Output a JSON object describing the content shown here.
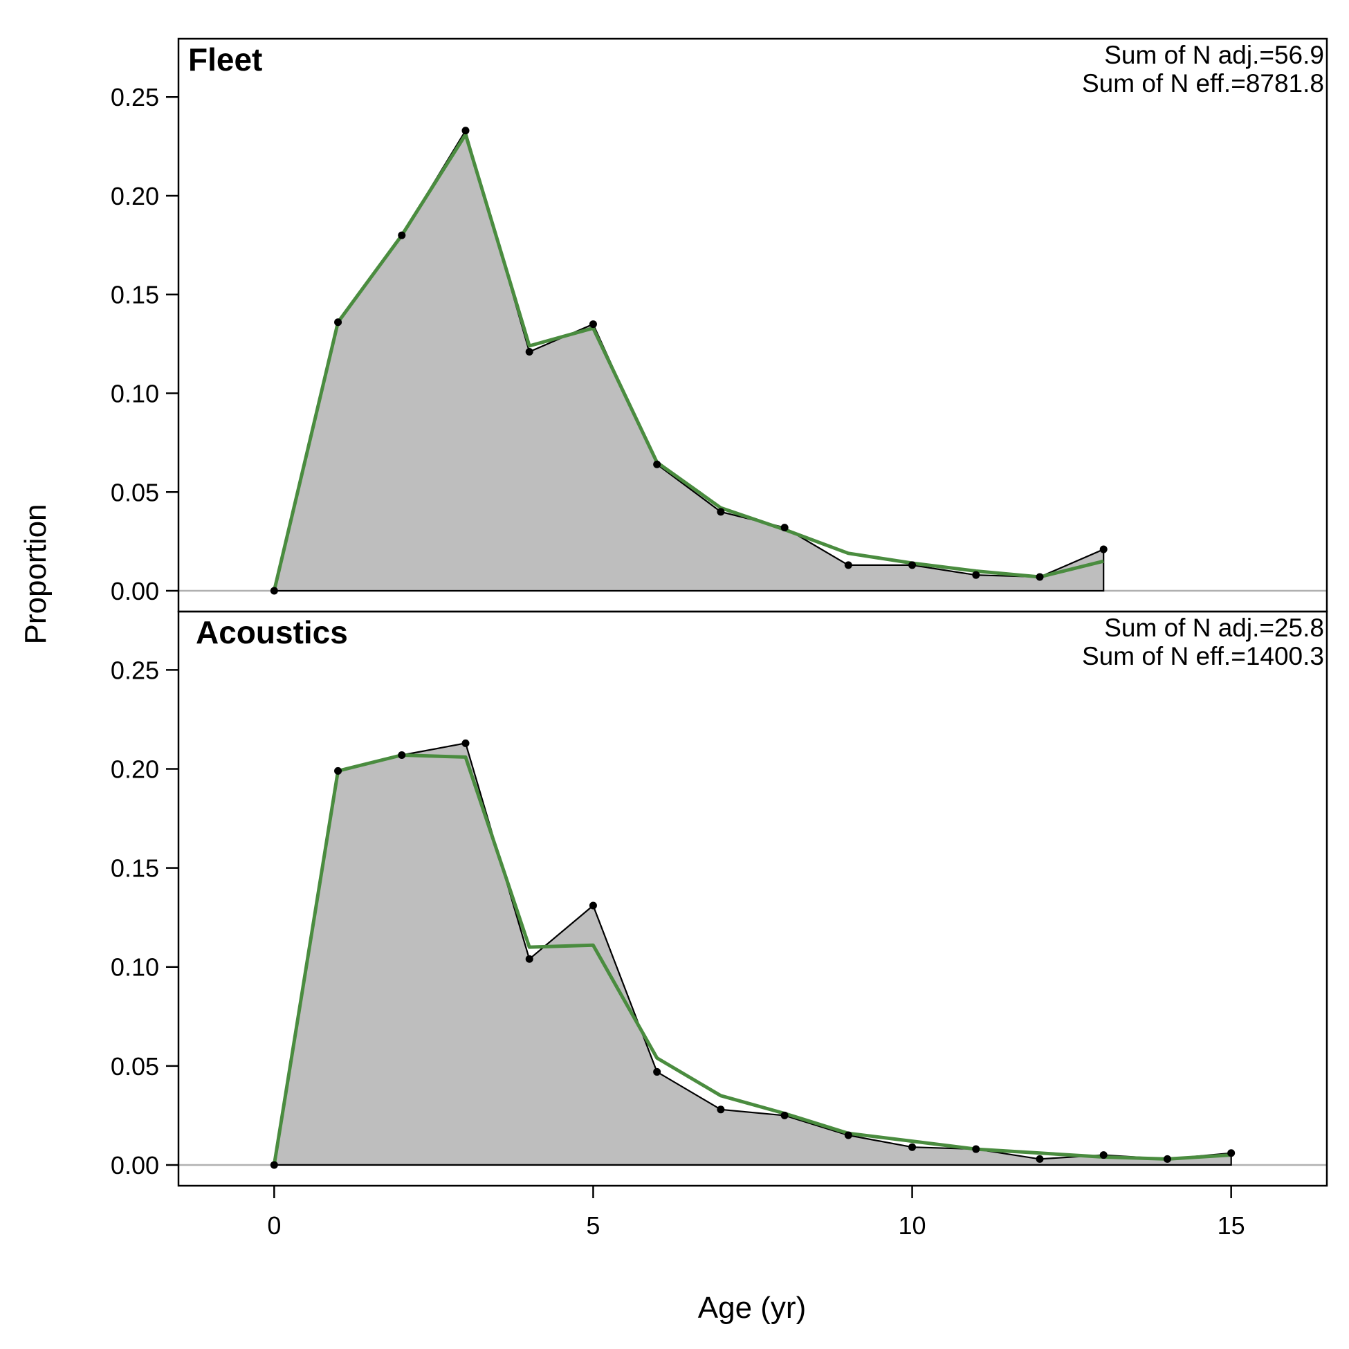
{
  "chart_data": {
    "type": "area",
    "xlabel": "Age (yr)",
    "ylabel": "Proportion",
    "xlim": [
      -1.5,
      16.5
    ],
    "ylim": [
      -0.0105,
      0.2795
    ],
    "x_ticks": [
      "0",
      "5",
      "10",
      "15"
    ],
    "y_ticks": [
      "0.00",
      "0.05",
      "0.10",
      "0.15",
      "0.20",
      "0.25"
    ],
    "grid": false,
    "colors": {
      "observed_fill": "#bebebe",
      "observed_line": "#000000",
      "expected_line": "#4a8c3f",
      "zero_line": "#b0b0b0"
    },
    "panels": [
      {
        "title": "Fleet",
        "notes": [
          "Sum of N adj.=56.9",
          "Sum of N eff.=8781.8"
        ],
        "x": [
          0,
          1,
          2,
          3,
          4,
          5,
          6,
          7,
          8,
          9,
          10,
          11,
          12,
          13
        ],
        "observed": [
          0.0,
          0.136,
          0.18,
          0.233,
          0.121,
          0.135,
          0.064,
          0.04,
          0.032,
          0.013,
          0.013,
          0.008,
          0.007,
          0.021
        ],
        "expected": [
          0.0,
          0.136,
          0.18,
          0.231,
          0.124,
          0.133,
          0.065,
          0.042,
          0.031,
          0.019,
          0.014,
          0.01,
          0.007,
          0.015
        ]
      },
      {
        "title": "Acoustics",
        "notes": [
          "Sum of N adj.=25.8",
          "Sum of N eff.=1400.3"
        ],
        "x": [
          0,
          1,
          2,
          3,
          4,
          5,
          6,
          7,
          8,
          9,
          10,
          11,
          12,
          13,
          14,
          15
        ],
        "observed": [
          0.0,
          0.199,
          0.207,
          0.213,
          0.104,
          0.131,
          0.047,
          0.028,
          0.025,
          0.015,
          0.009,
          0.008,
          0.003,
          0.005,
          0.003,
          0.006
        ],
        "expected": [
          0.0,
          0.199,
          0.207,
          0.206,
          0.11,
          0.111,
          0.054,
          0.035,
          0.026,
          0.016,
          0.012,
          0.008,
          0.006,
          0.004,
          0.003,
          0.005
        ]
      }
    ]
  }
}
